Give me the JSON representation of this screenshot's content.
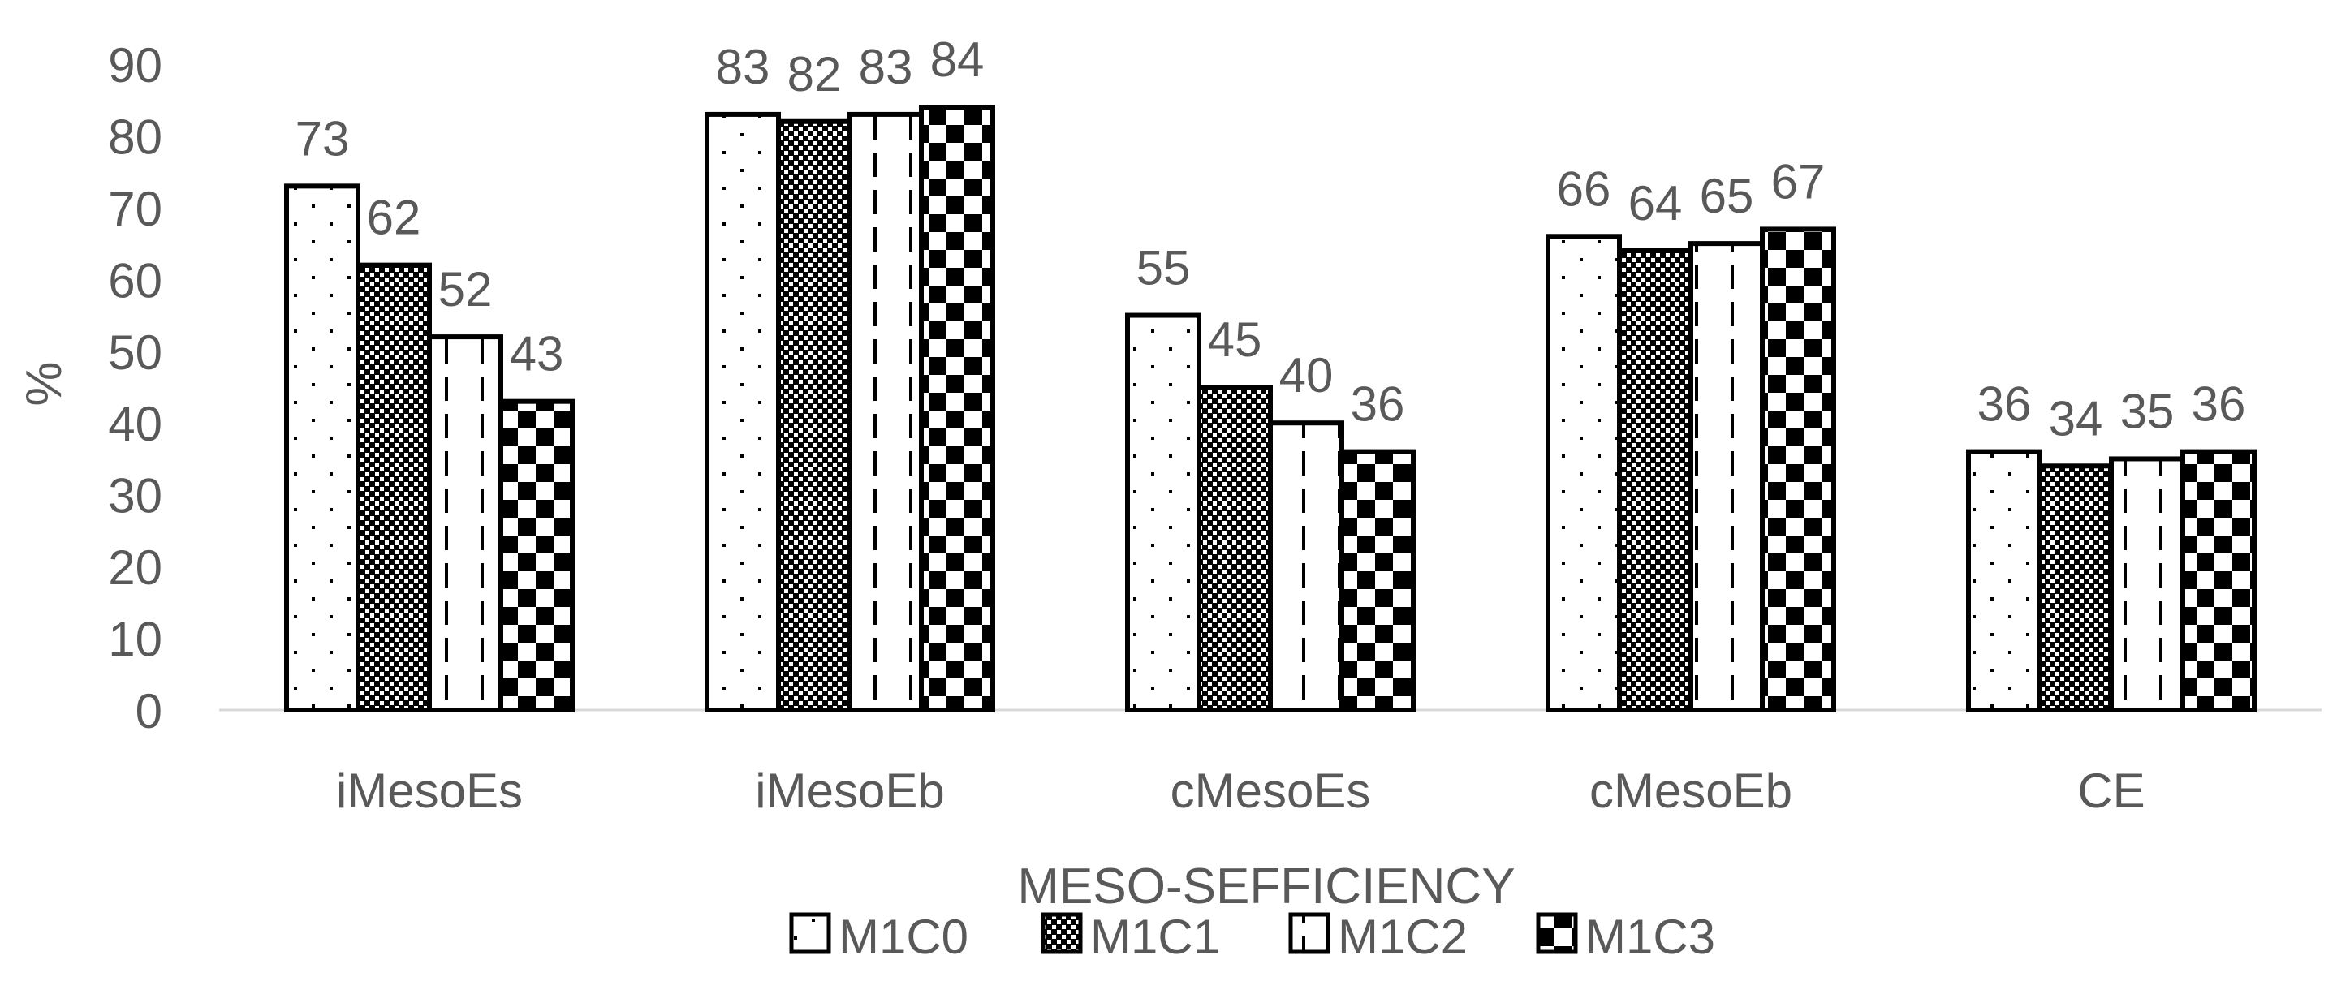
{
  "chart_data": {
    "type": "bar",
    "title": "",
    "xlabel": "MESO-SEFFICIENCY",
    "ylabel": "%",
    "ylim": [
      0,
      90
    ],
    "yticks": [
      0,
      10,
      20,
      30,
      40,
      50,
      60,
      70,
      80,
      90
    ],
    "grid": false,
    "legend_position": "bottom",
    "categories": [
      "iMesoEs",
      "iMesoEb",
      "cMesoEs",
      "cMesoEb",
      "CE"
    ],
    "series": [
      {
        "name": "M1C0",
        "pattern": "dots",
        "values": [
          73,
          83,
          55,
          66,
          36
        ]
      },
      {
        "name": "M1C1",
        "pattern": "dense-grid",
        "values": [
          62,
          82,
          45,
          64,
          34
        ]
      },
      {
        "name": "M1C2",
        "pattern": "dashed-vertical",
        "values": [
          52,
          83,
          40,
          65,
          35
        ]
      },
      {
        "name": "M1C3",
        "pattern": "checkerboard",
        "values": [
          43,
          84,
          36,
          67,
          36
        ]
      }
    ],
    "colors": {
      "text": "#595959",
      "bar_outline": "#000000",
      "axis": "#d9d9d9",
      "fill": "#ffffff"
    }
  }
}
